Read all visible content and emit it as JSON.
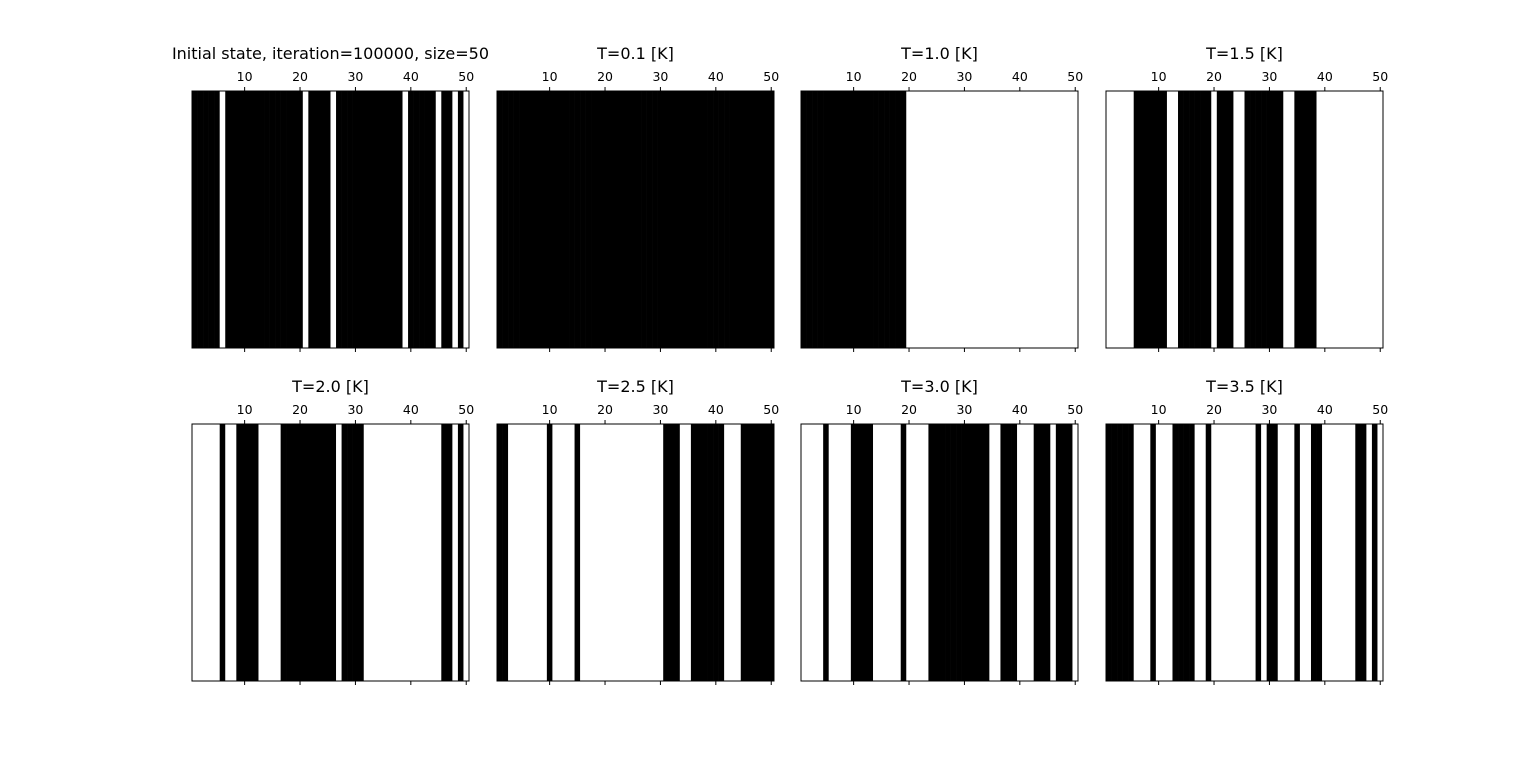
{
  "chart_data": [
    {
      "type": "heatmap",
      "title": "Initial state, iteration=100000, size=50",
      "xticks": [
        "10",
        "20",
        "30",
        "40",
        "50"
      ],
      "xlim": [
        0.5,
        50.5
      ],
      "colors": {
        "spin_up": "#000000",
        "spin_down": "#ffffff"
      },
      "spins": [
        1,
        1,
        1,
        1,
        1,
        0,
        1,
        1,
        1,
        1,
        1,
        1,
        1,
        1,
        1,
        1,
        1,
        1,
        1,
        1,
        0,
        1,
        1,
        1,
        1,
        0,
        1,
        1,
        1,
        1,
        1,
        1,
        1,
        1,
        1,
        1,
        1,
        1,
        0,
        1,
        1,
        1,
        1,
        1,
        0,
        1,
        1,
        0,
        1,
        0
      ]
    },
    {
      "type": "heatmap",
      "title": "T=0.1 [K]",
      "xticks": [
        "10",
        "20",
        "30",
        "40",
        "50"
      ],
      "xlim": [
        0.5,
        50.5
      ],
      "colors": {
        "spin_up": "#000000",
        "spin_down": "#ffffff"
      },
      "spins": [
        1,
        1,
        1,
        1,
        1,
        1,
        1,
        1,
        1,
        1,
        1,
        1,
        1,
        1,
        1,
        1,
        1,
        1,
        1,
        1,
        1,
        1,
        1,
        1,
        1,
        1,
        1,
        1,
        1,
        1,
        1,
        1,
        1,
        1,
        1,
        1,
        1,
        1,
        1,
        1,
        1,
        1,
        1,
        1,
        1,
        1,
        1,
        1,
        1,
        1
      ]
    },
    {
      "type": "heatmap",
      "title": "T=1.0 [K]",
      "xticks": [
        "10",
        "20",
        "30",
        "40",
        "50"
      ],
      "xlim": [
        0.5,
        50.5
      ],
      "colors": {
        "spin_up": "#000000",
        "spin_down": "#ffffff"
      },
      "spins": [
        1,
        1,
        1,
        1,
        1,
        1,
        1,
        1,
        1,
        1,
        1,
        1,
        1,
        1,
        1,
        1,
        1,
        1,
        1,
        0,
        0,
        0,
        0,
        0,
        0,
        0,
        0,
        0,
        0,
        0,
        0,
        0,
        0,
        0,
        0,
        0,
        0,
        0,
        0,
        0,
        0,
        0,
        0,
        0,
        0,
        0,
        0,
        0,
        0,
        0
      ]
    },
    {
      "type": "heatmap",
      "title": "T=1.5 [K]",
      "xticks": [
        "10",
        "20",
        "30",
        "40",
        "50"
      ],
      "xlim": [
        0.5,
        50.5
      ],
      "colors": {
        "spin_up": "#000000",
        "spin_down": "#ffffff"
      },
      "spins": [
        0,
        0,
        0,
        0,
        0,
        1,
        1,
        1,
        1,
        1,
        1,
        0,
        0,
        1,
        1,
        1,
        1,
        1,
        1,
        0,
        1,
        1,
        1,
        0,
        0,
        1,
        1,
        1,
        1,
        1,
        1,
        1,
        0,
        0,
        1,
        1,
        1,
        1,
        0,
        0,
        0,
        0,
        0,
        0,
        0,
        0,
        0,
        0,
        0,
        0
      ]
    },
    {
      "type": "heatmap",
      "title": "T=2.0 [K]",
      "xticks": [
        "10",
        "20",
        "30",
        "40",
        "50"
      ],
      "xlim": [
        0.5,
        50.5
      ],
      "colors": {
        "spin_up": "#000000",
        "spin_down": "#ffffff"
      },
      "spins": [
        0,
        0,
        0,
        0,
        0,
        1,
        0,
        0,
        1,
        1,
        1,
        1,
        0,
        0,
        0,
        0,
        1,
        1,
        1,
        1,
        1,
        1,
        1,
        1,
        1,
        1,
        0,
        1,
        1,
        1,
        1,
        0,
        0,
        0,
        0,
        0,
        0,
        0,
        0,
        0,
        0,
        0,
        0,
        0,
        0,
        1,
        1,
        0,
        1,
        0
      ]
    },
    {
      "type": "heatmap",
      "title": "T=2.5 [K]",
      "xticks": [
        "10",
        "20",
        "30",
        "40",
        "50"
      ],
      "xlim": [
        0.5,
        50.5
      ],
      "colors": {
        "spin_up": "#000000",
        "spin_down": "#ffffff"
      },
      "spins": [
        1,
        1,
        0,
        0,
        0,
        0,
        0,
        0,
        0,
        1,
        0,
        0,
        0,
        0,
        1,
        0,
        0,
        0,
        0,
        0,
        0,
        0,
        0,
        0,
        0,
        0,
        0,
        0,
        0,
        0,
        1,
        1,
        1,
        0,
        0,
        1,
        1,
        1,
        1,
        1,
        1,
        0,
        0,
        0,
        1,
        1,
        1,
        1,
        1,
        1
      ]
    },
    {
      "type": "heatmap",
      "title": "T=3.0 [K]",
      "xticks": [
        "10",
        "20",
        "30",
        "40",
        "50"
      ],
      "xlim": [
        0.5,
        50.5
      ],
      "colors": {
        "spin_up": "#000000",
        "spin_down": "#ffffff"
      },
      "spins": [
        0,
        0,
        0,
        0,
        1,
        0,
        0,
        0,
        0,
        1,
        1,
        1,
        1,
        0,
        0,
        0,
        0,
        0,
        1,
        0,
        0,
        0,
        0,
        1,
        1,
        1,
        1,
        1,
        1,
        1,
        1,
        1,
        1,
        1,
        0,
        0,
        1,
        1,
        1,
        0,
        0,
        0,
        1,
        1,
        1,
        0,
        1,
        1,
        1,
        0
      ]
    },
    {
      "type": "heatmap",
      "title": "T=3.5 [K]",
      "xticks": [
        "10",
        "20",
        "30",
        "40",
        "50"
      ],
      "xlim": [
        0.5,
        50.5
      ],
      "colors": {
        "spin_up": "#000000",
        "spin_down": "#ffffff"
      },
      "spins": [
        1,
        1,
        1,
        1,
        1,
        0,
        0,
        0,
        1,
        0,
        0,
        0,
        1,
        1,
        1,
        1,
        0,
        0,
        1,
        0,
        0,
        0,
        0,
        0,
        0,
        0,
        0,
        1,
        0,
        1,
        1,
        0,
        0,
        0,
        1,
        0,
        0,
        1,
        1,
        0,
        0,
        0,
        0,
        0,
        0,
        1,
        1,
        0,
        1,
        0
      ]
    }
  ]
}
